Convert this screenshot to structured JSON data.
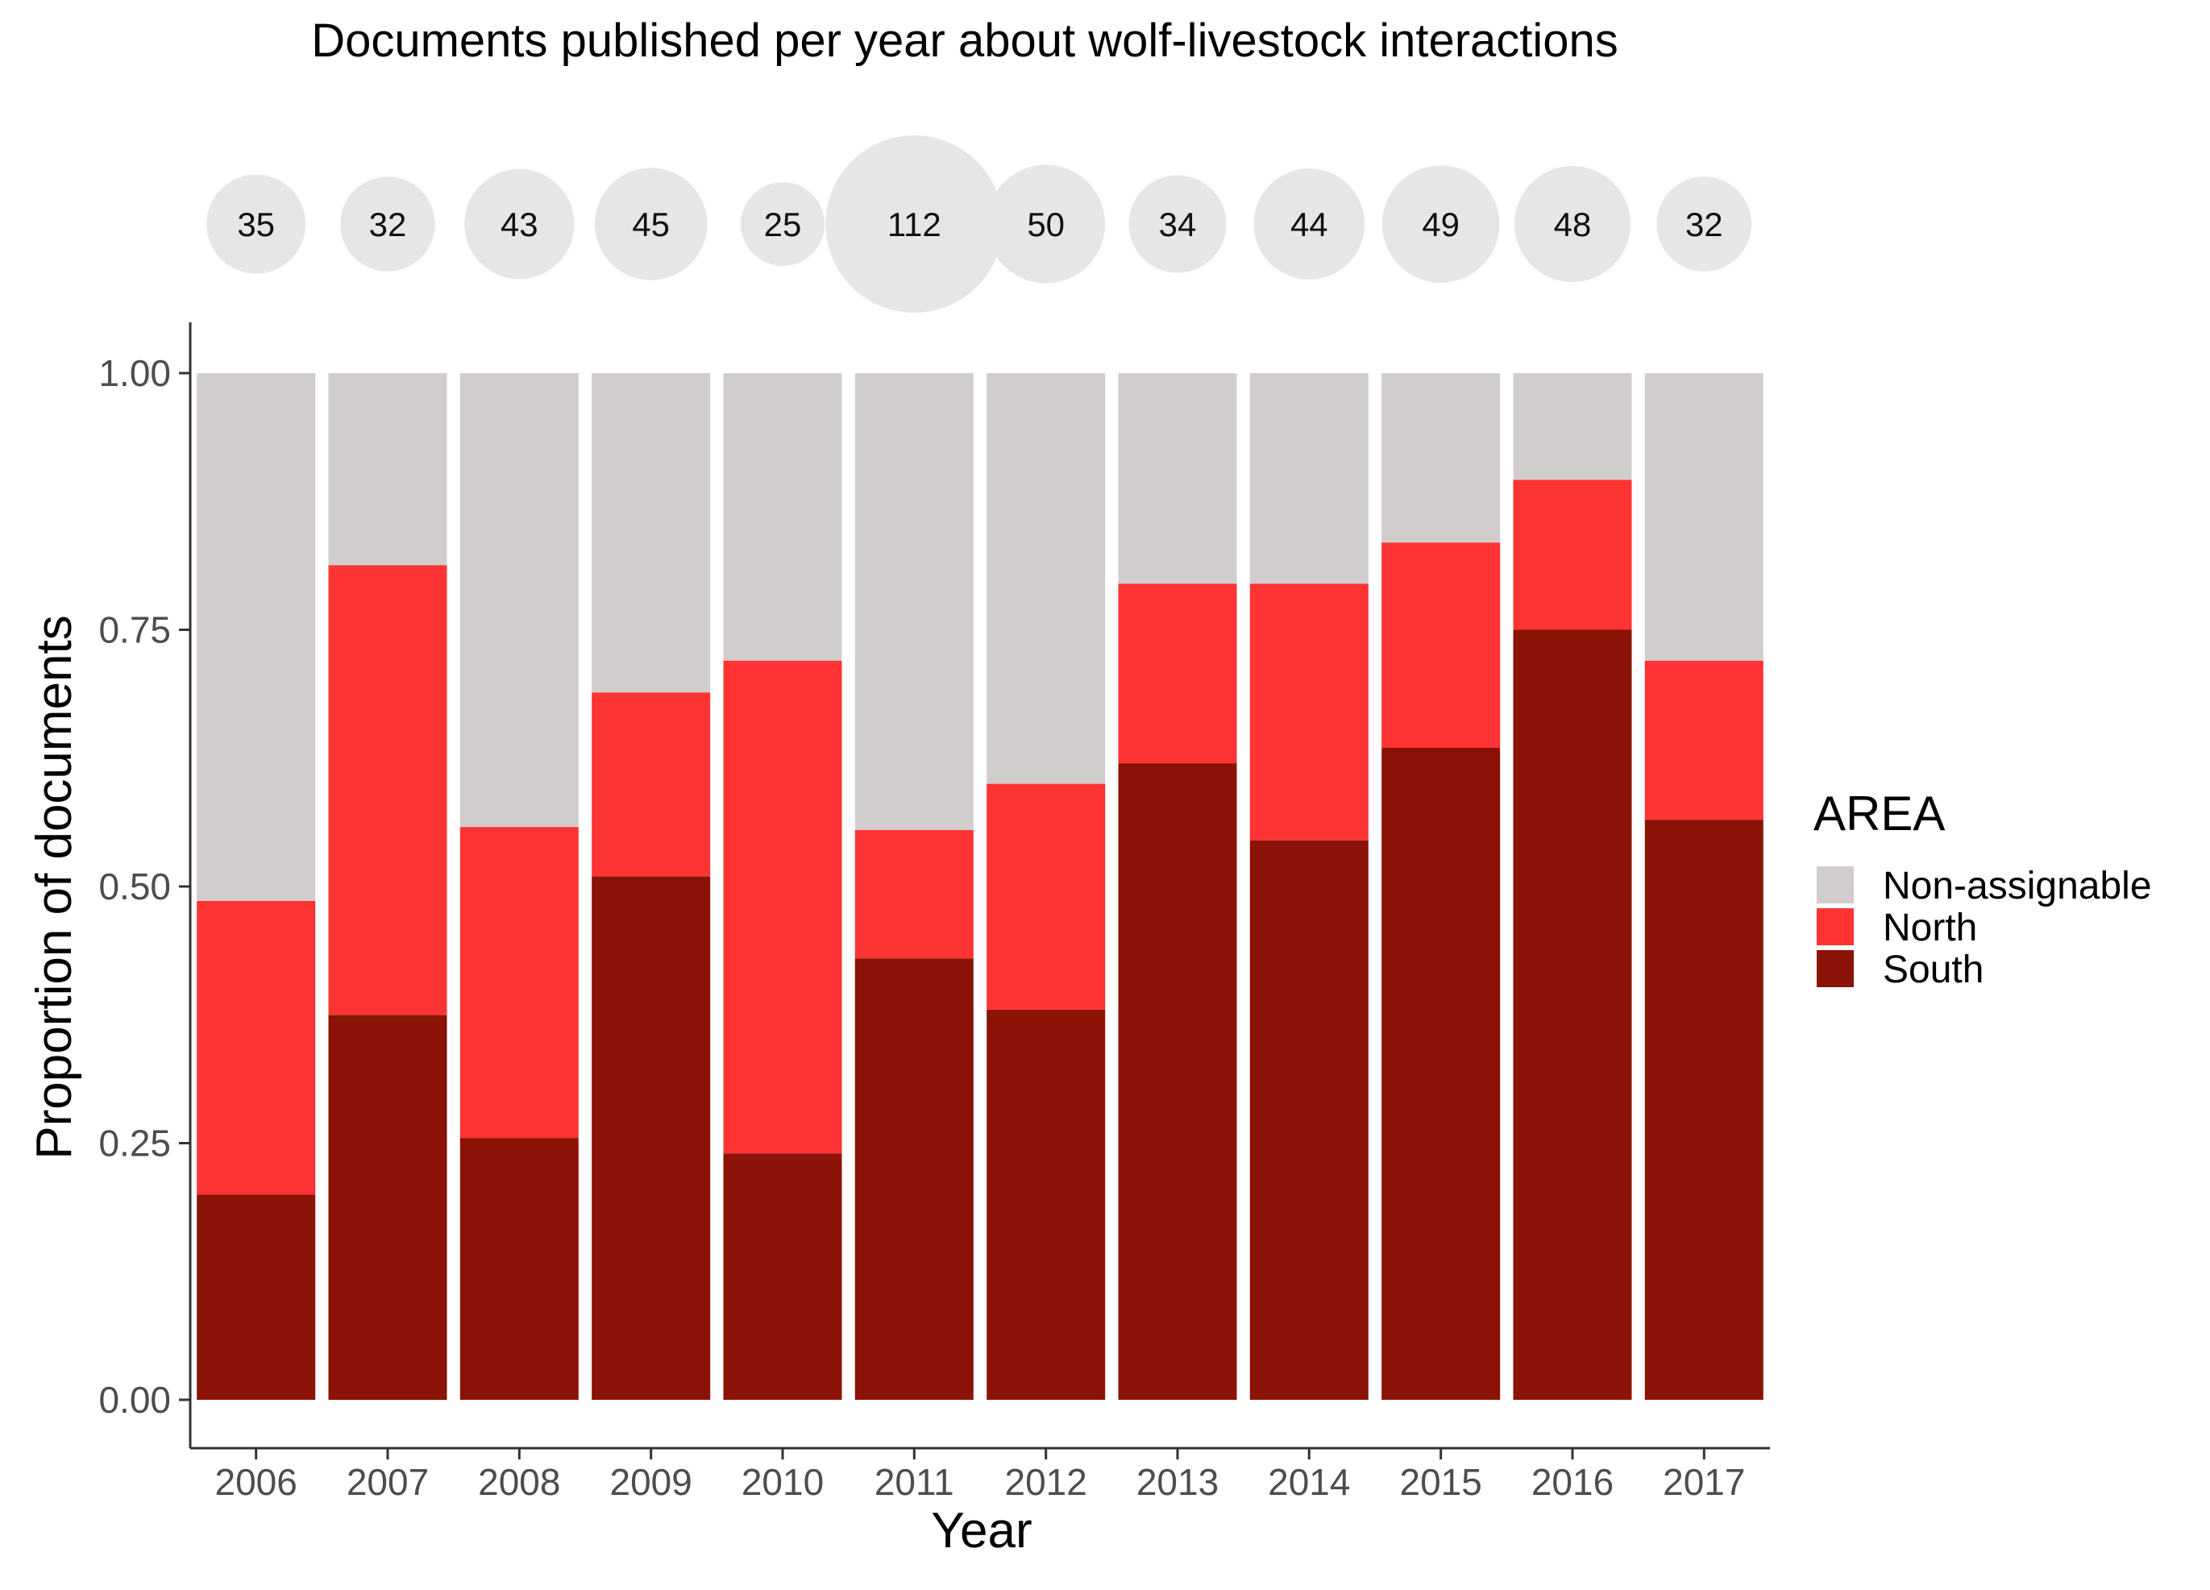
{
  "chart_data": {
    "type": "bar",
    "stacked": true,
    "title": "Documents published per year about wolf-livestock interactions",
    "xlabel": "Year",
    "ylabel": "Proportion of documents",
    "ylim": [
      0,
      1
    ],
    "yticks": [
      "0.00",
      "0.25",
      "0.50",
      "0.75",
      "1.00"
    ],
    "grid": false,
    "legend": {
      "title": "AREA",
      "placement": "right"
    },
    "categories": [
      "2006",
      "2007",
      "2008",
      "2009",
      "2010",
      "2011",
      "2012",
      "2013",
      "2014",
      "2015",
      "2016",
      "2017"
    ],
    "series": [
      {
        "name": "South",
        "color": "#8b1206",
        "values": [
          0.2,
          0.375,
          0.255,
          0.51,
          0.24,
          0.43,
          0.38,
          0.62,
          0.545,
          0.635,
          0.75,
          0.565
        ]
      },
      {
        "name": "North",
        "color": "#fe3333",
        "values": [
          0.286,
          0.438,
          0.303,
          0.179,
          0.48,
          0.125,
          0.22,
          0.175,
          0.25,
          0.2,
          0.146,
          0.155
        ]
      },
      {
        "name": "Non-assignable",
        "color": "#d1cdcd",
        "values": [
          0.514,
          0.187,
          0.442,
          0.311,
          0.28,
          0.445,
          0.4,
          0.205,
          0.205,
          0.165,
          0.104,
          0.28
        ]
      }
    ],
    "document_counts": [
      35,
      32,
      43,
      45,
      25,
      112,
      50,
      34,
      44,
      49,
      48,
      32
    ],
    "bubble_color": "#e7e5e6"
  }
}
